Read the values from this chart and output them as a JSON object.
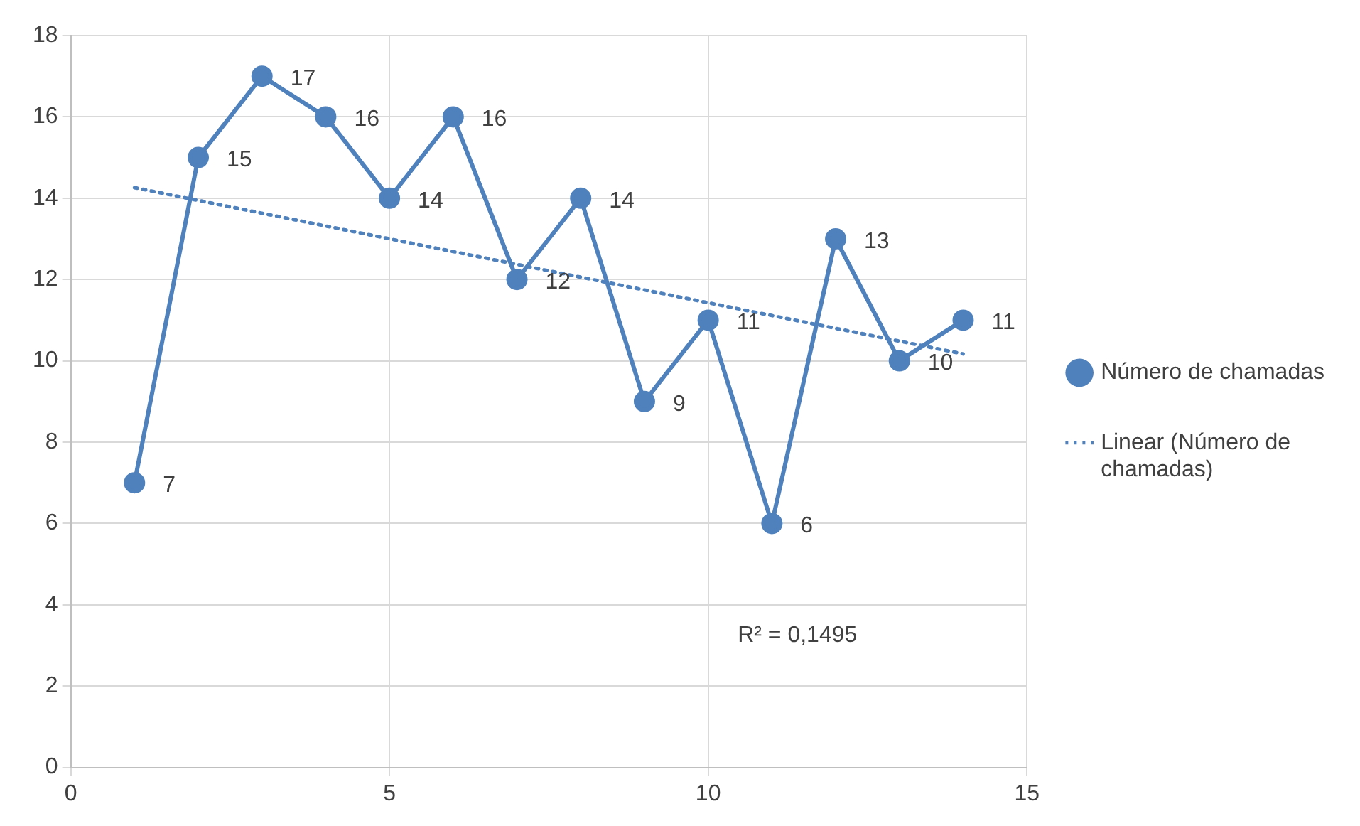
{
  "chart_data": {
    "type": "line",
    "x": [
      1,
      2,
      3,
      4,
      5,
      6,
      7,
      8,
      9,
      10,
      11,
      12,
      13,
      14
    ],
    "series": [
      {
        "name": "Número de chamadas",
        "color": "#4f81bd",
        "values": [
          7,
          15,
          17,
          16,
          14,
          16,
          12,
          14,
          9,
          11,
          6,
          13,
          10,
          11
        ],
        "marker": "circle",
        "line_style": "solid",
        "data_labels": true
      },
      {
        "name": "Linear (Número de chamadas)",
        "color": "#4f81bd",
        "type": "line",
        "x": [
          1,
          14
        ],
        "values": [
          14.26,
          10.17
        ],
        "marker": "none",
        "line_style": "dotted"
      }
    ],
    "xlim": [
      0,
      15
    ],
    "xticks": [
      0,
      5,
      10,
      15
    ],
    "ylim": [
      0,
      18
    ],
    "yticks": [
      0,
      2,
      4,
      6,
      8,
      10,
      12,
      14,
      16,
      18
    ],
    "grid": true,
    "legend": "right",
    "annotations": [
      "R² = 0,1495"
    ]
  }
}
